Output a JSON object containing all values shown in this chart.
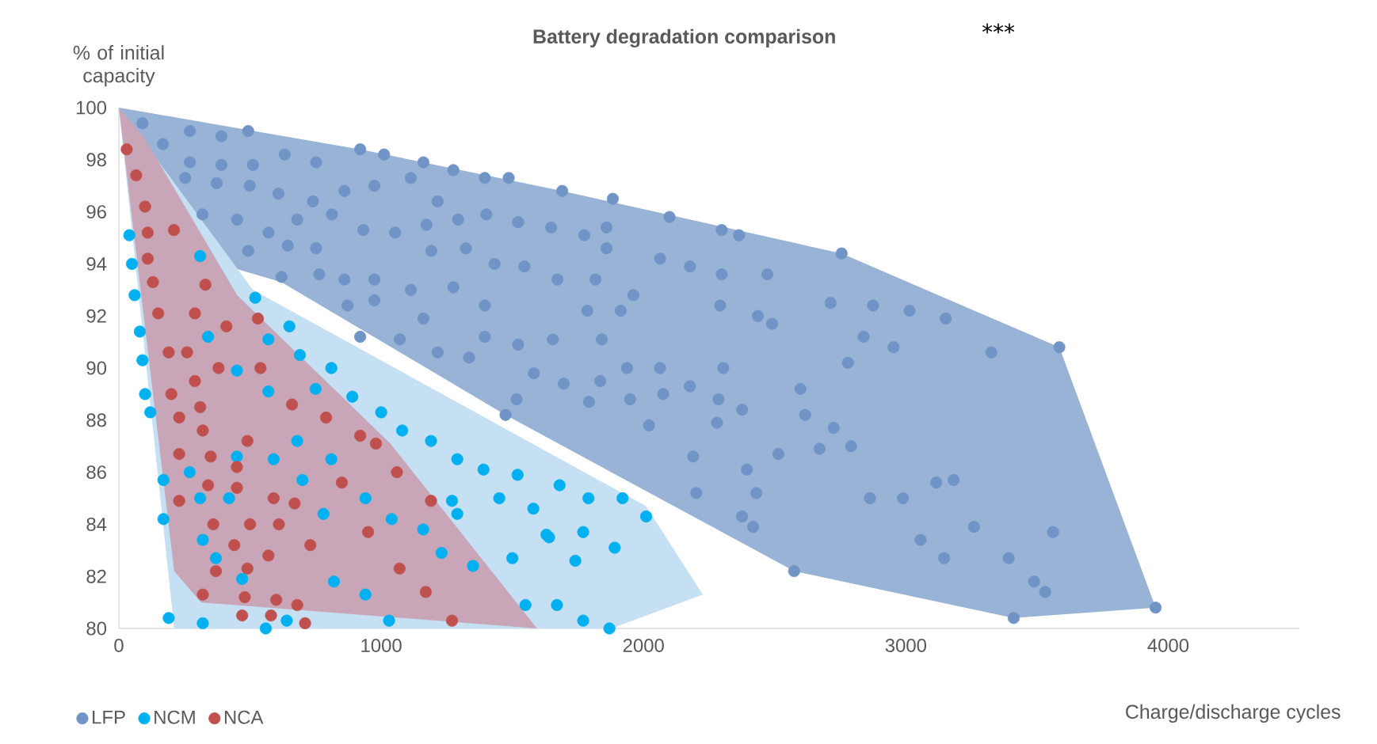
{
  "chart_data": {
    "type": "scatter",
    "title": "Battery degradation comparison",
    "annotations": [
      "***"
    ],
    "xlabel": "Charge/discharge cycles",
    "ylabel": "% of initial capacity",
    "xlim": [
      0,
      4500
    ],
    "ylim": [
      80,
      100
    ],
    "xticks": [
      0,
      1000,
      2000,
      3000,
      4000
    ],
    "yticks": [
      80,
      82,
      84,
      86,
      88,
      90,
      92,
      94,
      96,
      98,
      100
    ],
    "legend": "bottom left",
    "grid": false,
    "series": [
      {
        "type": "area",
        "color": "#99b3d6",
        "x": [
          0,
          920,
          1690,
          2755,
          3585,
          3952,
          3411,
          2574,
          1474,
          620,
          451
        ],
        "values": [
          100,
          98.4,
          96.8,
          94.4,
          90.8,
          80.8,
          80.4,
          82.2,
          88.2,
          93.3,
          93.8
        ]
      },
      {
        "type": "area",
        "color": "#c5dff3",
        "x": [
          0,
          511,
          2009,
          2226,
          1877,
          211
        ],
        "values": [
          100,
          93.0,
          84.7,
          81.3,
          80.0,
          80.0
        ]
      },
      {
        "type": "area",
        "color": "#c9a5b8",
        "x": [
          0,
          100,
          451,
          1035,
          1594,
          313,
          211
        ],
        "values": [
          100,
          98.8,
          92.8,
          87.1,
          80.0,
          81.0,
          82.2
        ]
      },
      {
        "name": "LFP",
        "marker": "circle",
        "color": "#7094c6",
        "x": [
          90,
          271,
          391,
          493,
          168,
          271,
          391,
          511,
          632,
          752,
          920,
          1011,
          1161,
          1275,
          1395,
          1486,
          253,
          373,
          499,
          608,
          740,
          860,
          974,
          1113,
          1215,
          319,
          451,
          571,
          680,
          812,
          932,
          1053,
          1173,
          1293,
          1401,
          1522,
          493,
          644,
          752,
          1191,
          1323,
          1432,
          1546,
          620,
          764,
          860,
          974,
          1113,
          1275,
          872,
          974,
          1161,
          1395,
          920,
          1071,
          1215,
          1335,
          1395,
          1522,
          1582,
          1516,
          1474,
          1690,
          1883,
          2099,
          2298,
          2364,
          2755,
          1648,
          1774,
          1859,
          1859,
          2063,
          2177,
          2298,
          2472,
          1672,
          1817,
          1961,
          1786,
          1913,
          2292,
          2436,
          2490,
          2713,
          2875,
          3014,
          2839,
          2953,
          1654,
          1841,
          2779,
          1696,
          1835,
          1937,
          2063,
          2304,
          1792,
          1949,
          2075,
          2177,
          2286,
          2376,
          2280,
          2021,
          2598,
          2616,
          2725,
          2791,
          2671,
          2514,
          2189,
          2394,
          2201,
          2430,
          2376,
          2418,
          2574,
          2863,
          2989,
          3056,
          3152,
          3326,
          3585,
          3116,
          3182,
          3260,
          3146,
          3392,
          3561,
          3489,
          3531,
          3411,
          3952
        ],
        "values": [
          99.4,
          99.1,
          98.9,
          99.1,
          98.6,
          97.9,
          97.8,
          97.8,
          98.2,
          97.9,
          98.4,
          98.2,
          97.9,
          97.6,
          97.3,
          97.3,
          97.3,
          97.1,
          97.0,
          96.7,
          96.4,
          96.8,
          97.0,
          97.3,
          96.4,
          95.9,
          95.7,
          95.2,
          95.7,
          95.9,
          95.3,
          95.2,
          95.5,
          95.7,
          95.9,
          95.6,
          94.5,
          94.7,
          94.6,
          94.5,
          94.6,
          94.0,
          93.9,
          93.5,
          93.6,
          93.4,
          93.4,
          93.0,
          93.1,
          92.4,
          92.6,
          91.9,
          92.4,
          91.2,
          91.1,
          90.6,
          90.4,
          91.2,
          90.9,
          89.8,
          88.8,
          88.2,
          96.8,
          96.5,
          95.8,
          95.3,
          95.1,
          94.4,
          95.4,
          95.1,
          95.4,
          94.6,
          94.2,
          93.9,
          93.6,
          93.6,
          93.4,
          93.4,
          92.8,
          92.2,
          92.2,
          92.4,
          92.0,
          91.7,
          92.5,
          92.4,
          92.2,
          91.2,
          90.8,
          91.1,
          91.1,
          90.2,
          89.4,
          89.5,
          90.0,
          90.0,
          90.0,
          88.7,
          88.8,
          89.0,
          89.3,
          88.8,
          88.4,
          87.9,
          87.8,
          89.2,
          88.2,
          87.7,
          87.0,
          86.9,
          86.7,
          86.6,
          86.1,
          85.2,
          85.2,
          84.3,
          83.9,
          82.2,
          85.0,
          85.0,
          83.4,
          91.9,
          90.6,
          90.8,
          85.6,
          85.7,
          83.9,
          82.7,
          82.7,
          83.7,
          81.8,
          81.4,
          80.4,
          80.8
        ]
      },
      {
        "name": "NCM",
        "marker": "circle",
        "color": "#00b0f0",
        "x": [
          40,
          50,
          60,
          80,
          90,
          100,
          120,
          170,
          170,
          190,
          320,
          560,
          520,
          650,
          570,
          690,
          810,
          750,
          890,
          1000,
          1080,
          1190,
          1290,
          1390,
          1520,
          1450,
          1580,
          1630,
          1500,
          1550,
          1270,
          1290,
          310,
          340,
          450,
          570,
          680,
          450,
          270,
          310,
          420,
          590,
          700,
          810,
          940,
          1040,
          1160,
          1230,
          1350,
          780,
          320,
          370,
          470,
          820,
          940,
          1030,
          640,
          1680,
          1790,
          1920,
          2010,
          1640,
          1770,
          1890,
          1740,
          1670,
          1770,
          1870
        ],
        "values": [
          95.1,
          94.0,
          92.8,
          91.4,
          90.3,
          89.0,
          88.3,
          85.7,
          84.2,
          80.4,
          80.2,
          80.0,
          92.7,
          91.6,
          91.1,
          90.5,
          90.0,
          89.2,
          88.9,
          88.3,
          87.6,
          87.2,
          86.5,
          86.1,
          85.9,
          85.0,
          84.6,
          83.6,
          82.7,
          80.9,
          84.9,
          84.4,
          94.3,
          91.2,
          89.9,
          89.1,
          87.2,
          86.6,
          86.0,
          85.0,
          85.0,
          86.5,
          85.7,
          86.5,
          85.0,
          84.2,
          83.8,
          82.9,
          82.4,
          84.4,
          83.4,
          82.7,
          81.9,
          81.8,
          81.3,
          80.3,
          80.3,
          85.5,
          85.0,
          85.0,
          84.3,
          83.5,
          83.7,
          83.1,
          82.6,
          80.9,
          80.3,
          80.0
        ]
      },
      {
        "name": "NCA",
        "marker": "circle",
        "color": "#c0504d",
        "x": [
          30,
          66,
          100,
          110,
          110,
          130,
          150,
          210,
          330,
          290,
          410,
          530,
          190,
          260,
          380,
          540,
          290,
          200,
          310,
          230,
          660,
          790,
          320,
          490,
          920,
          980,
          230,
          350,
          450,
          1060,
          340,
          450,
          850,
          230,
          590,
          670,
          1190,
          360,
          500,
          610,
          950,
          440,
          730,
          570,
          370,
          490,
          1070,
          1170,
          320,
          480,
          600,
          680,
          470,
          580,
          710,
          1270
        ],
        "values": [
          98.4,
          97.4,
          96.2,
          95.2,
          94.2,
          93.3,
          92.1,
          95.3,
          93.2,
          92.1,
          91.6,
          91.9,
          90.6,
          90.6,
          90.0,
          90.0,
          89.5,
          89.0,
          88.5,
          88.1,
          88.6,
          88.1,
          87.6,
          87.2,
          87.4,
          87.1,
          86.7,
          86.6,
          86.2,
          86.0,
          85.5,
          85.4,
          85.6,
          84.9,
          85.0,
          84.8,
          84.9,
          84.0,
          84.0,
          84.0,
          83.7,
          83.2,
          83.2,
          82.8,
          82.2,
          82.3,
          82.3,
          81.4,
          81.3,
          81.2,
          81.1,
          80.9,
          80.5,
          80.5,
          80.2,
          80.3
        ]
      }
    ]
  }
}
